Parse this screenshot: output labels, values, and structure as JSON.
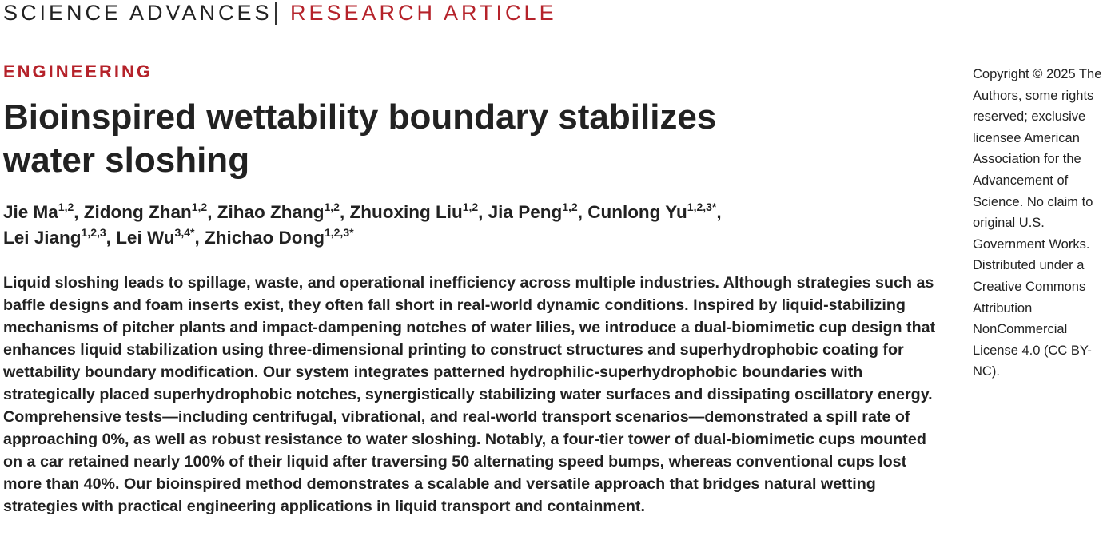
{
  "header": {
    "journal": "SCIENCE ADVANCES",
    "article_type": "RESEARCH ARTICLE"
  },
  "section": "ENGINEERING",
  "title_lines": [
    "Bioinspired wettability boundary stabilizes",
    "water sloshing"
  ],
  "authors": [
    {
      "name": "Jie Ma",
      "aff": "1,2",
      "sep": ", "
    },
    {
      "name": "Zidong Zhan",
      "aff": "1,2",
      "sep": ", "
    },
    {
      "name": "Zihao Zhang",
      "aff": "1,2",
      "sep": ", "
    },
    {
      "name": "Zhuoxing Liu",
      "aff": "1,2",
      "sep": ", "
    },
    {
      "name": "Jia Peng",
      "aff": "1,2",
      "sep": ", "
    },
    {
      "name": "Cunlong Yu",
      "aff": "1,2,3*",
      "sep": ","
    },
    {
      "name": "Lei Jiang",
      "aff": "1,2,3",
      "sep": ", "
    },
    {
      "name": "Lei Wu",
      "aff": "3,4*",
      "sep": ", "
    },
    {
      "name": "Zhichao Dong",
      "aff": "1,2,3*",
      "sep": ""
    }
  ],
  "abstract": "Liquid sloshing leads to spillage, waste, and operational inefficiency across multiple industries. Although strate­gies such as baffle designs and foam inserts exist, they often fall short in real-world dynamic conditions. Inspired by liquid-stabilizing mechanisms of pitcher plants and impact-dampening notches of water lilies, we introduce a dual-biomimetic cup design that enhances liquid stabilization using three-dimensional printing to construct structures and superhydrophobic coating for wettability boundary modification. Our system integrates patterned hydrophilic-superhydrophobic boundaries with strategically placed superhydrophobic notches, synergistically stabilizing water surfaces and dissipating oscillatory energy. Comprehensive tests—including centrifugal, vibra­tional, and real-world transport scenarios—demonstrated a spill rate of approaching 0%, as well as robust resistance to water sloshing. Notably, a four-tier tower of dual-biomimetic cups mounted on a car retained nearly 100% of their liquid after traversing 50 alternating speed bumps, whereas conventional cups lost more than 40%. Our bioinspired method demonstrates a scalable and versatile approach that bridges natural wetting strategies with practical engineering applications in liquid transport and containment.",
  "copyright": "Copyright © 2025 The Authors, some rights reserved; exclusive licensee American Association for the Advancement of Science. No claim to original U.S. Government Works. Distributed under a Creative Commons Attribution NonCommercial License 4.0 (CC BY-NC)."
}
